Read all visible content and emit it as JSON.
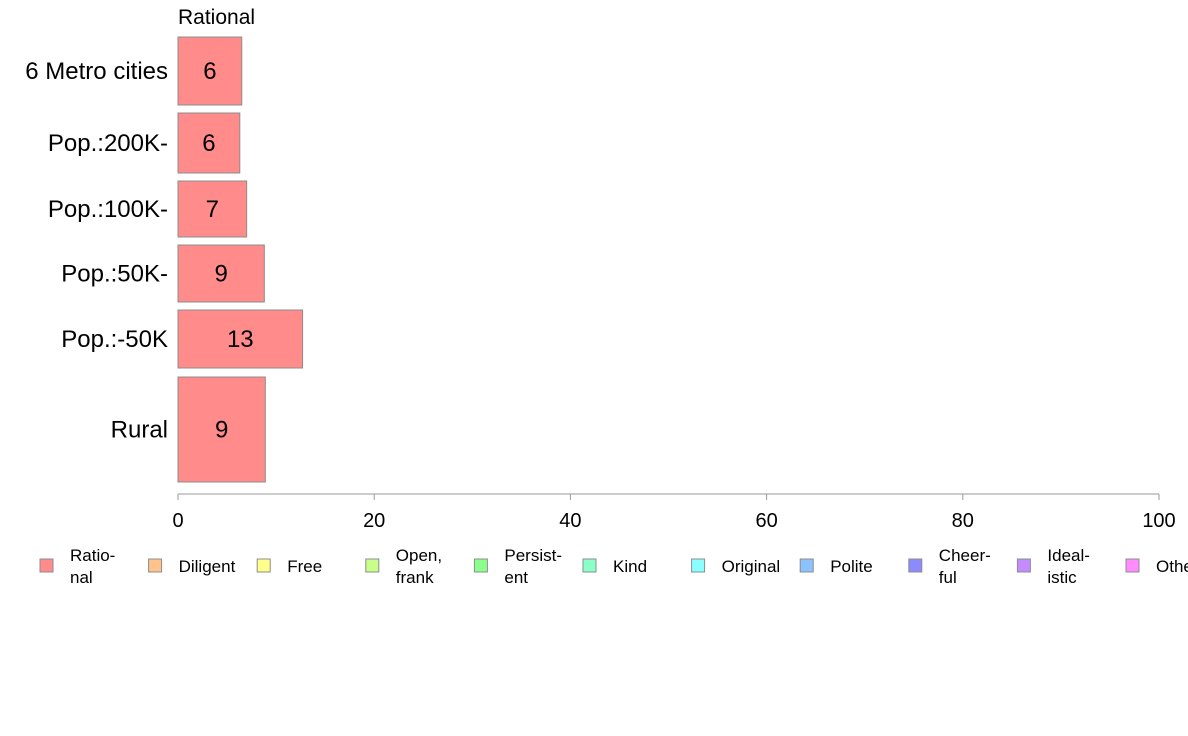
{
  "chart_data": {
    "type": "bar",
    "orientation": "horizontal",
    "series_title": "Rational",
    "categories": [
      "6 Metro cities",
      "Pop.:200K-",
      "Pop.:100K-",
      "Pop.:50K-",
      "Pop.:-50K",
      "Rural"
    ],
    "series": [
      {
        "name": "Rational",
        "color": "#ff8b8b",
        "values": [
          6.5,
          6.3,
          7.0,
          8.8,
          12.7,
          8.9
        ],
        "labels": [
          "6",
          "6",
          "7",
          "9",
          "13",
          "9"
        ]
      }
    ],
    "xlim": [
      0,
      100
    ],
    "x_ticks": [
      "0",
      "20",
      "40",
      "60",
      "80",
      "100"
    ],
    "grid": false,
    "legend_position": "bottom",
    "legend": [
      {
        "label": "Ratio-\nnal",
        "color": "#ff8b8b"
      },
      {
        "label": "Diligent",
        "color": "#ffc38b"
      },
      {
        "label": "Free",
        "color": "#ffff8b"
      },
      {
        "label": "Open,\nfrank",
        "color": "#c8ff8b"
      },
      {
        "label": "Persist-\nent",
        "color": "#8bff8b"
      },
      {
        "label": "Kind",
        "color": "#8bffc8"
      },
      {
        "label": "Original",
        "color": "#8bffff"
      },
      {
        "label": "Polite",
        "color": "#8bc3ff"
      },
      {
        "label": "Cheer-\nful",
        "color": "#8b8bff"
      },
      {
        "label": "Ideal-\nistic",
        "color": "#c38bff"
      },
      {
        "label": "Other",
        "color": "#ff8bff"
      }
    ]
  }
}
